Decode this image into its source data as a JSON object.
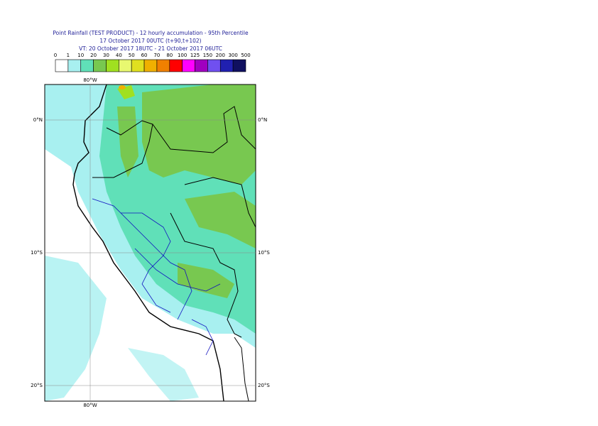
{
  "header": {
    "title": "Point Rainfall (TEST PRODUCT) - 12 hourly accumulation - 95th Percentile",
    "base_time": "17 October 2017 00UTC (t+90,t+102)",
    "valid_time": "VT: 20 October 2017 18UTC - 21 October 2017 06UTC"
  },
  "legend": {
    "labels": [
      "0",
      "1",
      "10",
      "20",
      "30",
      "40",
      "50",
      "60",
      "70",
      "80",
      "100",
      "125",
      "150",
      "200",
      "300",
      "500"
    ],
    "colors": [
      "#ffffff",
      "#a8f0f0",
      "#60e0b8",
      "#78c850",
      "#a0e020",
      "#e8f870",
      "#e0e020",
      "#f0b000",
      "#f08000",
      "#ff0000",
      "#ff00ff",
      "#a000c0",
      "#7050f0",
      "#2020b0",
      "#101060"
    ]
  },
  "map": {
    "lon_labels": [
      "80°W"
    ],
    "lat_labels": [
      "0°N",
      "10°S",
      "20°S"
    ]
  }
}
